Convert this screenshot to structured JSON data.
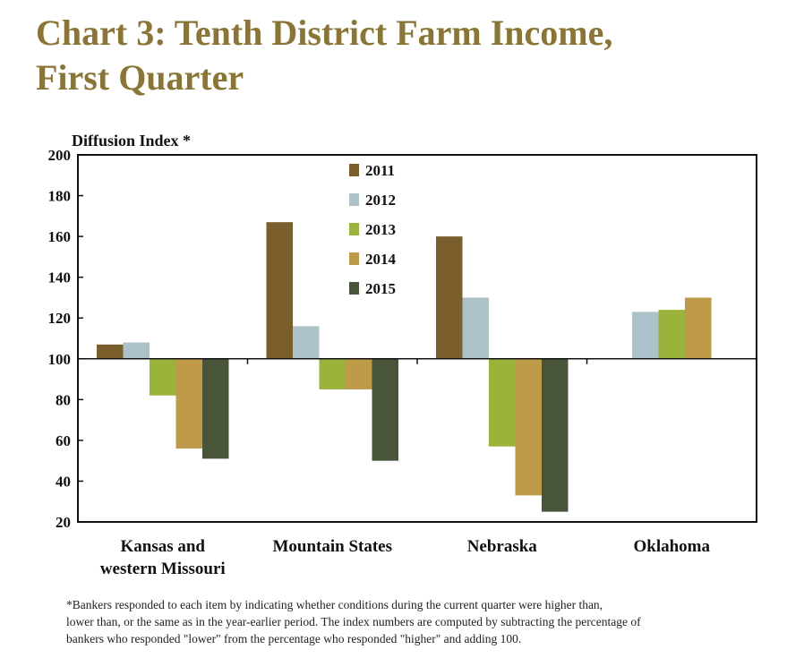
{
  "title_line1": "Chart 3: Tenth District Farm Income,",
  "title_line2": "First Quarter",
  "footnote_lines": [
    "*Bankers responded to each item by indicating whether conditions during the current quarter were higher than,",
    "lower than, or the same as in the year-earlier period.  The index numbers are computed by subtracting the percentage of",
    "bankers who responded \"lower\" from the percentage who responded \"higher\" and adding 100."
  ],
  "chart_data": {
    "type": "bar",
    "ylabel": "Diffusion Index *",
    "ylim": [
      20,
      200
    ],
    "yticks": [
      20,
      40,
      60,
      80,
      100,
      120,
      140,
      160,
      180,
      200
    ],
    "baseline": 100,
    "categories": [
      [
        "Kansas and",
        "western Missouri"
      ],
      [
        "Mountain States"
      ],
      [
        "Nebraska"
      ],
      [
        "Oklahoma"
      ]
    ],
    "series": [
      {
        "name": "2011",
        "color": "#7a5f2c",
        "values": [
          107,
          167,
          160,
          null
        ]
      },
      {
        "name": "2012",
        "color": "#adc2c8",
        "values": [
          108,
          116,
          130,
          123
        ]
      },
      {
        "name": "2013",
        "color": "#9ab33a",
        "values": [
          82,
          85,
          57,
          124
        ]
      },
      {
        "name": "2014",
        "color": "#bf9a48",
        "values": [
          56,
          85,
          33,
          130
        ]
      },
      {
        "name": "2015",
        "color": "#48553a",
        "values": [
          51,
          50,
          25,
          null
        ]
      }
    ],
    "legend_position": "top-center",
    "grid": false
  }
}
